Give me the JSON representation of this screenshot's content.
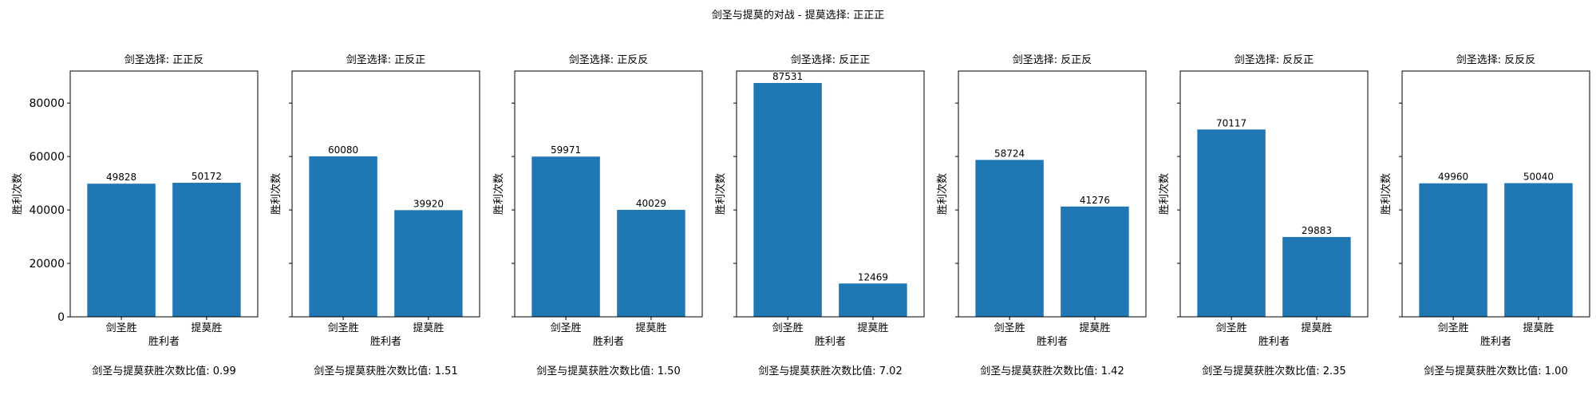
{
  "suptitle": "剑圣与提莫的对战 - 提莫选择: 正正正",
  "chart_data": [
    {
      "type": "bar",
      "title": "剑圣选择: 正正反",
      "categories": [
        "剑圣胜",
        "提莫胜"
      ],
      "values": [
        49828,
        50172
      ],
      "xlabel": "胜利者",
      "ylabel": "胜利次数",
      "ratio_text": "剑圣与提莫获胜次数比值: 0.99",
      "ylim": [
        0,
        92000
      ],
      "yticks": [
        0,
        20000,
        40000,
        60000,
        80000
      ],
      "show_ytick_labels": true
    },
    {
      "type": "bar",
      "title": "剑圣选择: 正反正",
      "categories": [
        "剑圣胜",
        "提莫胜"
      ],
      "values": [
        60080,
        39920
      ],
      "xlabel": "胜利者",
      "ylabel": "胜利次数",
      "ratio_text": "剑圣与提莫获胜次数比值: 1.51",
      "ylim": [
        0,
        92000
      ],
      "yticks": [
        0,
        20000,
        40000,
        60000,
        80000
      ],
      "show_ytick_labels": false
    },
    {
      "type": "bar",
      "title": "剑圣选择: 正反反",
      "categories": [
        "剑圣胜",
        "提莫胜"
      ],
      "values": [
        59971,
        40029
      ],
      "xlabel": "胜利者",
      "ylabel": "胜利次数",
      "ratio_text": "剑圣与提莫获胜次数比值: 1.50",
      "ylim": [
        0,
        92000
      ],
      "yticks": [
        0,
        20000,
        40000,
        60000,
        80000
      ],
      "show_ytick_labels": false
    },
    {
      "type": "bar",
      "title": "剑圣选择: 反正正",
      "categories": [
        "剑圣胜",
        "提莫胜"
      ],
      "values": [
        87531,
        12469
      ],
      "xlabel": "胜利者",
      "ylabel": "胜利次数",
      "ratio_text": "剑圣与提莫获胜次数比值: 7.02",
      "ylim": [
        0,
        92000
      ],
      "yticks": [
        0,
        20000,
        40000,
        60000,
        80000
      ],
      "show_ytick_labels": false
    },
    {
      "type": "bar",
      "title": "剑圣选择: 反正反",
      "categories": [
        "剑圣胜",
        "提莫胜"
      ],
      "values": [
        58724,
        41276
      ],
      "xlabel": "胜利者",
      "ylabel": "胜利次数",
      "ratio_text": "剑圣与提莫获胜次数比值: 1.42",
      "ylim": [
        0,
        92000
      ],
      "yticks": [
        0,
        20000,
        40000,
        60000,
        80000
      ],
      "show_ytick_labels": false
    },
    {
      "type": "bar",
      "title": "剑圣选择: 反反正",
      "categories": [
        "剑圣胜",
        "提莫胜"
      ],
      "values": [
        70117,
        29883
      ],
      "xlabel": "胜利者",
      "ylabel": "胜利次数",
      "ratio_text": "剑圣与提莫获胜次数比值: 2.35",
      "ylim": [
        0,
        92000
      ],
      "yticks": [
        0,
        20000,
        40000,
        60000,
        80000
      ],
      "show_ytick_labels": false
    },
    {
      "type": "bar",
      "title": "剑圣选择: 反反反",
      "categories": [
        "剑圣胜",
        "提莫胜"
      ],
      "values": [
        49960,
        50040
      ],
      "xlabel": "胜利者",
      "ylabel": "胜利次数",
      "ratio_text": "剑圣与提莫获胜次数比值: 1.00",
      "ylim": [
        0,
        92000
      ],
      "yticks": [
        0,
        20000,
        40000,
        60000,
        80000
      ],
      "show_ytick_labels": false
    }
  ],
  "colors": {
    "bar": "#1f77b4",
    "axis": "#000000",
    "background": "#ffffff"
  }
}
